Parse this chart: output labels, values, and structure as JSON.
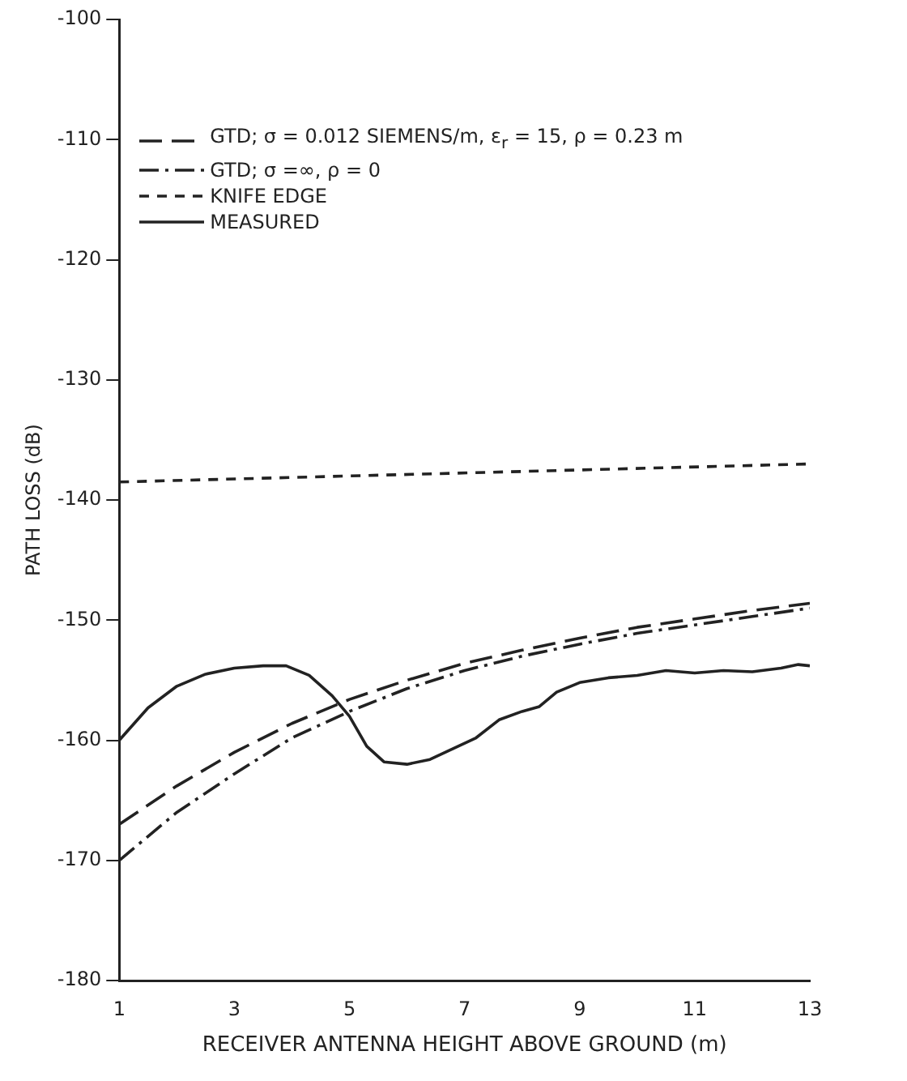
{
  "chart_data": {
    "type": "line",
    "xlabel": "RECEIVER ANTENNA HEIGHT ABOVE GROUND (m)",
    "ylabel": "PATH LOSS (dB)",
    "xlim": [
      1,
      13
    ],
    "xticks": [
      1,
      3,
      5,
      7,
      9,
      11,
      13
    ],
    "ylim": [
      -180,
      -100
    ],
    "yticks": [
      -180,
      -170,
      -160,
      -150,
      -140,
      -130,
      -120,
      -110,
      -100
    ],
    "grid": false,
    "legend": "top left",
    "marker": "none",
    "series": [
      {
        "name": "GTD; σ = 0.012 SIEMENS/m, ε$_{r}$ = 15, ρ = 0.23 m",
        "color": "#222222",
        "line_style": "dashed",
        "x": [
          1,
          2,
          3,
          4,
          5,
          6,
          7,
          8,
          9,
          10,
          11,
          12,
          13
        ],
        "values": [
          -167,
          -163.8,
          -161,
          -158.6,
          -156.6,
          -155,
          -153.6,
          -152.5,
          -151.5,
          -150.6,
          -149.9,
          -149.2,
          -148.6
        ]
      },
      {
        "name": "GTD; σ =∞, ρ = 0",
        "color": "#222222",
        "line_style": "dashdot",
        "x": [
          1,
          2,
          3,
          4,
          5,
          6,
          7,
          8,
          9,
          10,
          11,
          12,
          13
        ],
        "values": [
          -170,
          -166,
          -162.8,
          -159.8,
          -157.6,
          -155.7,
          -154.2,
          -153,
          -152,
          -151.1,
          -150.4,
          -149.7,
          -149
        ]
      },
      {
        "name": "KNIFE EDGE",
        "color": "#222222",
        "line_style": "dashed_short",
        "x": [
          1,
          13
        ],
        "values": [
          -138.5,
          -137
        ]
      },
      {
        "name": "MEASURED",
        "color": "#222222",
        "line_style": "solid",
        "x": [
          1,
          1.5,
          2,
          2.5,
          3,
          3.5,
          3.9,
          4.3,
          4.7,
          5,
          5.3,
          5.6,
          6,
          6.4,
          6.8,
          7.2,
          7.6,
          8,
          8.3,
          8.6,
          9,
          9.5,
          10,
          10.5,
          11,
          11.5,
          12,
          12.5,
          12.8,
          13
        ],
        "values": [
          -160,
          -157.3,
          -155.5,
          -154.5,
          -154,
          -153.8,
          -153.8,
          -154.6,
          -156.3,
          -158,
          -160.5,
          -161.8,
          -162,
          -161.6,
          -160.7,
          -159.8,
          -158.3,
          -157.6,
          -157.2,
          -156,
          -155.2,
          -154.8,
          -154.6,
          -154.2,
          -154.4,
          -154.2,
          -154.3,
          -154,
          -153.7,
          -153.8
        ]
      }
    ]
  }
}
